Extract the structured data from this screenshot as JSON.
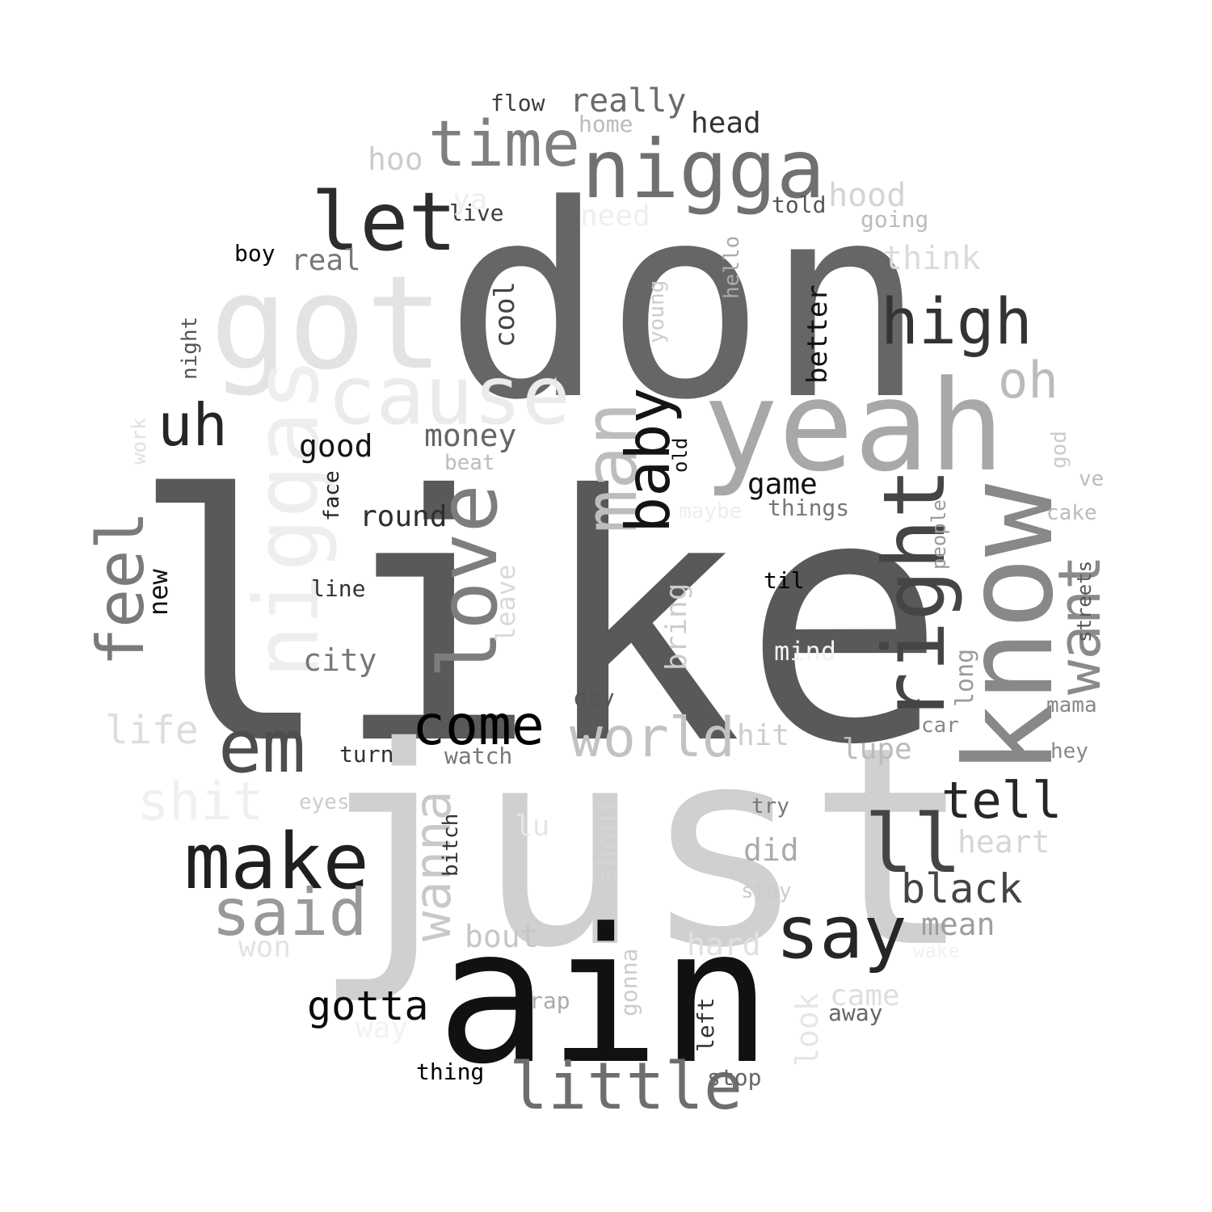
{
  "words": [
    {
      "text": "like",
      "color": "#595959",
      "rotated": false
    },
    {
      "text": "don",
      "color": "#666666",
      "rotated": false
    },
    {
      "text": "just",
      "color": "#d0d0d0",
      "rotated": false
    },
    {
      "text": "ain",
      "color": "#111111",
      "rotated": false
    },
    {
      "text": "got",
      "color": "#e3e3e3",
      "rotated": false
    },
    {
      "text": "yeah",
      "color": "#a8a8a8",
      "rotated": false
    },
    {
      "text": "know",
      "color": "#888888",
      "rotated": true
    },
    {
      "text": "niggas",
      "color": "#eeeeee",
      "rotated": true
    },
    {
      "text": "nigga",
      "color": "#707070",
      "rotated": false
    },
    {
      "text": "cause",
      "color": "#ebebeb",
      "rotated": false
    },
    {
      "text": "let",
      "color": "#2c2c2c",
      "rotated": false
    },
    {
      "text": "time",
      "color": "#7f7f7f",
      "rotated": false
    },
    {
      "text": "love",
      "color": "#7d7d7d",
      "rotated": true
    },
    {
      "text": "man",
      "color": "#bdbdbd",
      "rotated": true
    },
    {
      "text": "right",
      "color": "#454545",
      "rotated": true
    },
    {
      "text": "make",
      "color": "#1f1f1f",
      "rotated": false
    },
    {
      "text": "em",
      "color": "#4d4d4d",
      "rotated": false
    },
    {
      "text": "ll",
      "color": "#444444",
      "rotated": false
    },
    {
      "text": "say",
      "color": "#262626",
      "rotated": false
    },
    {
      "text": "said",
      "color": "#999999",
      "rotated": false
    },
    {
      "text": "little",
      "color": "#6e6e6e",
      "rotated": false
    },
    {
      "text": "high",
      "color": "#333333",
      "rotated": false
    },
    {
      "text": "wanna",
      "color": "#c9c9c9",
      "rotated": true
    },
    {
      "text": "world",
      "color": "#c2c2c2",
      "rotated": false
    },
    {
      "text": "come",
      "color": "#000000",
      "rotated": false
    },
    {
      "text": "baby",
      "color": "#141414",
      "rotated": true
    },
    {
      "text": "want",
      "color": "#8a8a8a",
      "rotated": true
    },
    {
      "text": "feel",
      "color": "#7a7a7a",
      "rotated": true
    },
    {
      "text": "uh",
      "color": "#262626",
      "rotated": false
    },
    {
      "text": "shit",
      "color": "#f0f0f0",
      "rotated": false
    },
    {
      "text": "tell",
      "color": "#262626",
      "rotated": false
    },
    {
      "text": "oh",
      "color": "#bbbbbb",
      "rotated": false
    },
    {
      "text": "black",
      "color": "#444444",
      "rotated": false
    },
    {
      "text": "gotta",
      "color": "#0a0a0a",
      "rotated": false
    },
    {
      "text": "life",
      "color": "#dddddd",
      "rotated": false
    },
    {
      "text": "hood",
      "color": "#d4d4d4",
      "rotated": false
    },
    {
      "text": "think",
      "color": "#dbdbdb",
      "rotated": false
    },
    {
      "text": "really",
      "color": "#6b6b6b",
      "rotated": false
    },
    {
      "text": "head",
      "color": "#333333",
      "rotated": false
    },
    {
      "text": "money",
      "color": "#666666",
      "rotated": false
    },
    {
      "text": "good",
      "color": "#141414",
      "rotated": false
    },
    {
      "text": "cool",
      "color": "#444444",
      "rotated": true
    },
    {
      "text": "round",
      "color": "#2e2e2e",
      "rotated": false
    },
    {
      "text": "game",
      "color": "#111111",
      "rotated": false
    },
    {
      "text": "city",
      "color": "#777777",
      "rotated": false
    },
    {
      "text": "real",
      "color": "#777777",
      "rotated": false
    },
    {
      "text": "better",
      "color": "#111111",
      "rotated": true
    },
    {
      "text": "hoo",
      "color": "#cccccc",
      "rotated": false
    },
    {
      "text": "look",
      "color": "#e6e6e6",
      "rotated": true
    },
    {
      "text": "heart",
      "color": "#d6d6d6",
      "rotated": false
    },
    {
      "text": "mean",
      "color": "#9e9e9e",
      "rotated": false
    },
    {
      "text": "lupe",
      "color": "#bbbbbb",
      "rotated": false
    },
    {
      "text": "did",
      "color": "#aaaaaa",
      "rotated": false
    },
    {
      "text": "bout",
      "color": "#c6c6c6",
      "rotated": false
    },
    {
      "text": "hard",
      "color": "#e0e0e0",
      "rotated": false
    },
    {
      "text": "shout",
      "color": "#d4d4d4",
      "rotated": true
    },
    {
      "text": "bring",
      "color": "#cccccc",
      "rotated": true
    },
    {
      "text": "hit",
      "color": "#cccccc",
      "rotated": false
    },
    {
      "text": "came",
      "color": "#dedede",
      "rotated": false
    },
    {
      "text": "long",
      "color": "#9a9a9a",
      "rotated": true
    },
    {
      "text": "won",
      "color": "#e3e3e3",
      "rotated": false
    },
    {
      "text": "leave",
      "color": "#d9d9d9",
      "rotated": true
    },
    {
      "text": "lu",
      "color": "#e6e6e6",
      "rotated": false
    },
    {
      "text": "new",
      "color": "#111111",
      "rotated": true
    },
    {
      "text": "flow",
      "color": "#3d3d3d",
      "rotated": false
    },
    {
      "text": "live",
      "color": "#3d3d3d",
      "rotated": false
    },
    {
      "text": "told",
      "color": "#555555",
      "rotated": false
    },
    {
      "text": "going",
      "color": "#bbbbbb",
      "rotated": false
    },
    {
      "text": "home",
      "color": "#bbbbbb",
      "rotated": false
    },
    {
      "text": "need",
      "color": "#efefef",
      "rotated": false
    },
    {
      "text": "ya",
      "color": "#efefef",
      "rotated": false
    },
    {
      "text": "boy",
      "color": "#000000",
      "rotated": false
    },
    {
      "text": "night",
      "color": "#555555",
      "rotated": true
    },
    {
      "text": "hello",
      "color": "#aaaaaa",
      "rotated": true
    },
    {
      "text": "young",
      "color": "#cccccc",
      "rotated": true
    },
    {
      "text": "old",
      "color": "#111111",
      "rotated": true
    },
    {
      "text": "god",
      "color": "#cccccc",
      "rotated": true
    },
    {
      "text": "work",
      "color": "#e0e0e0",
      "rotated": true
    },
    {
      "text": "beat",
      "color": "#bbbbbb",
      "rotated": false
    },
    {
      "text": "face",
      "color": "#222222",
      "rotated": true
    },
    {
      "text": "ve",
      "color": "#bbbbbb",
      "rotated": false
    },
    {
      "text": "maybe",
      "color": "#eeeeee",
      "rotated": false
    },
    {
      "text": "things",
      "color": "#777777",
      "rotated": false
    },
    {
      "text": "cake",
      "color": "#bbbbbb",
      "rotated": false
    },
    {
      "text": "people",
      "color": "#999999",
      "rotated": true
    },
    {
      "text": "streets",
      "color": "#555555",
      "rotated": true
    },
    {
      "text": "line",
      "color": "#333333",
      "rotated": false
    },
    {
      "text": "til",
      "color": "#000000",
      "rotated": false
    },
    {
      "text": "mind",
      "color": "#f2f2f2",
      "rotated": false
    },
    {
      "text": "day",
      "color": "#555555",
      "rotated": false
    },
    {
      "text": "mama",
      "color": "#888888",
      "rotated": false
    },
    {
      "text": "car",
      "color": "#888888",
      "rotated": false
    },
    {
      "text": "hey",
      "color": "#888888",
      "rotated": false
    },
    {
      "text": "turn",
      "color": "#333333",
      "rotated": false
    },
    {
      "text": "watch",
      "color": "#777777",
      "rotated": false
    },
    {
      "text": "eyes",
      "color": "#cccccc",
      "rotated": false
    },
    {
      "text": "try",
      "color": "#777777",
      "rotated": false
    },
    {
      "text": "bitch",
      "color": "#333333",
      "rotated": true
    },
    {
      "text": "stay",
      "color": "#cccccc",
      "rotated": false
    },
    {
      "text": "gonna",
      "color": "#cccccc",
      "rotated": true
    },
    {
      "text": "left",
      "color": "#333333",
      "rotated": true
    },
    {
      "text": "rap",
      "color": "#aaaaaa",
      "rotated": false
    },
    {
      "text": "away",
      "color": "#666666",
      "rotated": false
    },
    {
      "text": "way",
      "color": "#f2f2f2",
      "rotated": false
    },
    {
      "text": "thing",
      "color": "#000000",
      "rotated": false
    },
    {
      "text": "stop",
      "color": "#666666",
      "rotated": false
    },
    {
      "text": "wake",
      "color": "#f2f2f2",
      "rotated": false
    }
  ]
}
